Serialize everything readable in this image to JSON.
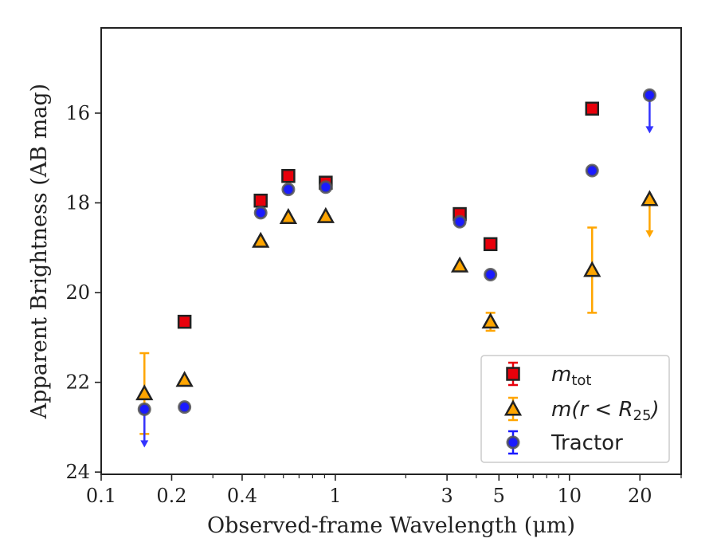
{
  "chart_data": {
    "type": "scatter",
    "xlabel": "Observed-frame Wavelength (μm)",
    "ylabel": "Apparent Brightness (AB mag)",
    "x_scale": "log",
    "xlim": [
      0.1,
      30
    ],
    "ylim": [
      24.05,
      14.1
    ],
    "y_inverted": true,
    "xticks": [
      {
        "value": 0.1,
        "label": "0.1"
      },
      {
        "value": 0.2,
        "label": "0.2"
      },
      {
        "value": 0.4,
        "label": "0.4"
      },
      {
        "value": 1,
        "label": "1"
      },
      {
        "value": 3,
        "label": "3"
      },
      {
        "value": 5,
        "label": "5"
      },
      {
        "value": 10,
        "label": "10"
      },
      {
        "value": 20,
        "label": "20"
      }
    ],
    "yticks": [
      {
        "value": 16,
        "label": "16"
      },
      {
        "value": 18,
        "label": "18"
      },
      {
        "value": 20,
        "label": "20"
      },
      {
        "value": 22,
        "label": "22"
      },
      {
        "value": 24,
        "label": "24"
      }
    ],
    "grid": false,
    "legend_position": "lower-right",
    "series": [
      {
        "name": "m_tot",
        "legend_main": "m",
        "legend_sub": "tot",
        "marker": "square",
        "color": "#e8000b",
        "points": [
          {
            "x": 0.227,
            "y": 20.65
          },
          {
            "x": 0.48,
            "y": 17.95
          },
          {
            "x": 0.63,
            "y": 17.4
          },
          {
            "x": 0.91,
            "y": 17.55
          },
          {
            "x": 3.4,
            "y": 18.25
          },
          {
            "x": 4.6,
            "y": 18.92
          },
          {
            "x": 12.5,
            "y": 15.9
          }
        ]
      },
      {
        "name": "m(r < R_25)",
        "legend_main": "m(r < R",
        "legend_sub": "25",
        "legend_end": ")",
        "marker": "triangle",
        "color": "#ffa500",
        "points": [
          {
            "x": 0.153,
            "y": 22.25,
            "err_lo": 0.9,
            "err_hi": 0.9
          },
          {
            "x": 0.227,
            "y": 21.95
          },
          {
            "x": 0.48,
            "y": 18.85
          },
          {
            "x": 0.63,
            "y": 18.32
          },
          {
            "x": 0.91,
            "y": 18.3
          },
          {
            "x": 3.4,
            "y": 19.4
          },
          {
            "x": 4.6,
            "y": 20.65,
            "err_lo": 0.2,
            "err_hi": 0.2
          },
          {
            "x": 12.5,
            "y": 19.5,
            "err_lo": 0.95,
            "err_hi": 0.95
          },
          {
            "x": 22.0,
            "y": 17.92,
            "upper_limit": true
          }
        ]
      },
      {
        "name": "Tractor",
        "legend_main": "Tractor",
        "marker": "circle",
        "color": "#1a1aff",
        "points": [
          {
            "x": 0.153,
            "y": 22.6,
            "upper_limit": true
          },
          {
            "x": 0.227,
            "y": 22.55
          },
          {
            "x": 0.48,
            "y": 18.22
          },
          {
            "x": 0.63,
            "y": 17.7
          },
          {
            "x": 0.91,
            "y": 17.65
          },
          {
            "x": 3.4,
            "y": 18.42
          },
          {
            "x": 4.6,
            "y": 19.6
          },
          {
            "x": 12.5,
            "y": 17.28
          },
          {
            "x": 22.0,
            "y": 15.6,
            "upper_limit": true
          }
        ]
      }
    ]
  }
}
